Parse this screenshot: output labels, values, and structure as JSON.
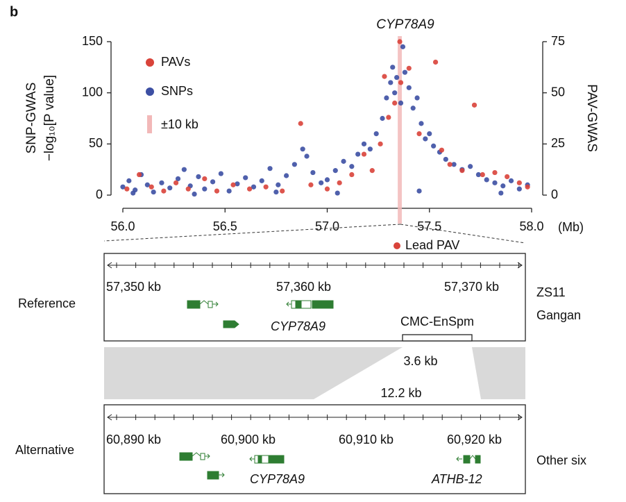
{
  "panel_label": "b",
  "chart_data": {
    "type": "scatter",
    "title": "CYP78A9",
    "y_label_lines": [
      "SNP-GWAS",
      "−log₁₀[P value]"
    ],
    "y2_label": "PAV-GWAS",
    "x_unit": "(Mb)",
    "xlim": [
      56.0,
      58.0
    ],
    "xticks": [
      {
        "value": 56.0,
        "label": "56.0"
      },
      {
        "value": 56.5,
        "label": "56.5"
      },
      {
        "value": 57.0,
        "label": "57.0"
      },
      {
        "value": 57.5,
        "label": "57.5"
      },
      {
        "value": 58.0,
        "label": "58.0"
      }
    ],
    "ylim": [
      0,
      150
    ],
    "yticks": [
      0,
      50,
      100,
      150
    ],
    "y2lim": [
      0,
      75
    ],
    "y2ticks": [
      0,
      25,
      50,
      75
    ],
    "highlight": {
      "label": "±10 kb",
      "center": 57.355,
      "half_width": 0.01,
      "color": "#f2b8b8"
    },
    "lead_label": "Lead PAV",
    "series": [
      {
        "name": "PAVs",
        "color": "#d9433a",
        "axis": "y2",
        "x": [
          56.02,
          56.08,
          56.14,
          56.2,
          56.26,
          56.32,
          56.4,
          56.46,
          56.54,
          56.62,
          56.7,
          56.78,
          56.87,
          56.92,
          57.0,
          57.06,
          57.12,
          57.18,
          57.22,
          57.26,
          57.28,
          57.3,
          57.33,
          57.355,
          57.36,
          57.4,
          57.45,
          57.53,
          57.56,
          57.6,
          57.66,
          57.72,
          57.76,
          57.82,
          57.88,
          57.94,
          57.98
        ],
        "values": [
          3,
          10,
          4,
          2,
          6,
          3,
          8,
          2,
          5,
          3,
          4,
          2,
          35,
          5,
          3,
          6,
          10,
          20,
          12,
          25,
          58,
          38,
          45,
          75,
          55,
          62,
          30,
          65,
          22,
          15,
          12,
          44,
          10,
          11,
          9,
          6,
          4
        ]
      },
      {
        "name": "SNPs",
        "color": "#3c4fa3",
        "x": [
          56.0,
          56.03,
          56.06,
          56.09,
          56.12,
          56.15,
          56.19,
          56.23,
          56.27,
          56.3,
          56.33,
          56.37,
          56.4,
          56.44,
          56.48,
          56.52,
          56.56,
          56.6,
          56.64,
          56.68,
          56.72,
          56.76,
          56.8,
          56.84,
          56.88,
          56.9,
          56.93,
          56.97,
          57.0,
          57.04,
          57.08,
          57.12,
          57.15,
          57.18,
          57.21,
          57.24,
          57.27,
          57.29,
          57.31,
          57.32,
          57.33,
          57.34,
          57.36,
          57.37,
          57.38,
          57.4,
          57.42,
          57.44,
          57.46,
          57.48,
          57.5,
          57.52,
          57.55,
          57.58,
          57.62,
          57.66,
          57.7,
          57.74,
          57.78,
          57.82,
          57.86,
          57.9,
          57.94,
          57.98,
          56.05,
          56.35,
          56.75,
          57.05,
          57.45,
          57.85
        ],
        "values": [
          8,
          14,
          5,
          20,
          10,
          3,
          12,
          7,
          16,
          25,
          9,
          18,
          6,
          13,
          21,
          4,
          11,
          17,
          8,
          14,
          26,
          10,
          19,
          30,
          45,
          38,
          22,
          12,
          15,
          24,
          33,
          28,
          40,
          50,
          45,
          60,
          75,
          95,
          110,
          125,
          100,
          115,
          90,
          145,
          120,
          105,
          85,
          95,
          70,
          55,
          60,
          48,
          42,
          35,
          30,
          25,
          28,
          20,
          15,
          12,
          9,
          14,
          6,
          10,
          2,
          1,
          3,
          2,
          4,
          2
        ]
      }
    ]
  },
  "diagram": {
    "reference": {
      "label": "Reference",
      "genome_labels": [
        "ZS11",
        "Gangan"
      ],
      "ruler_labels": [
        "57,350 kb",
        "57,360 kb",
        "57,370 kb"
      ],
      "gene_labels": [
        "CYP78A9"
      ],
      "insertion_label": "CMC-EnSpm"
    },
    "insertion_size": "3.6 kb",
    "region_size": "12.2 kb",
    "alternative": {
      "label": "Alternative",
      "genome_labels": [
        "Other six"
      ],
      "ruler_labels": [
        "60,890 kb",
        "60,900 kb",
        "60,910 kb",
        "60,920 kb"
      ],
      "gene_labels": [
        "CYP78A9",
        "ATHB-12"
      ]
    }
  }
}
